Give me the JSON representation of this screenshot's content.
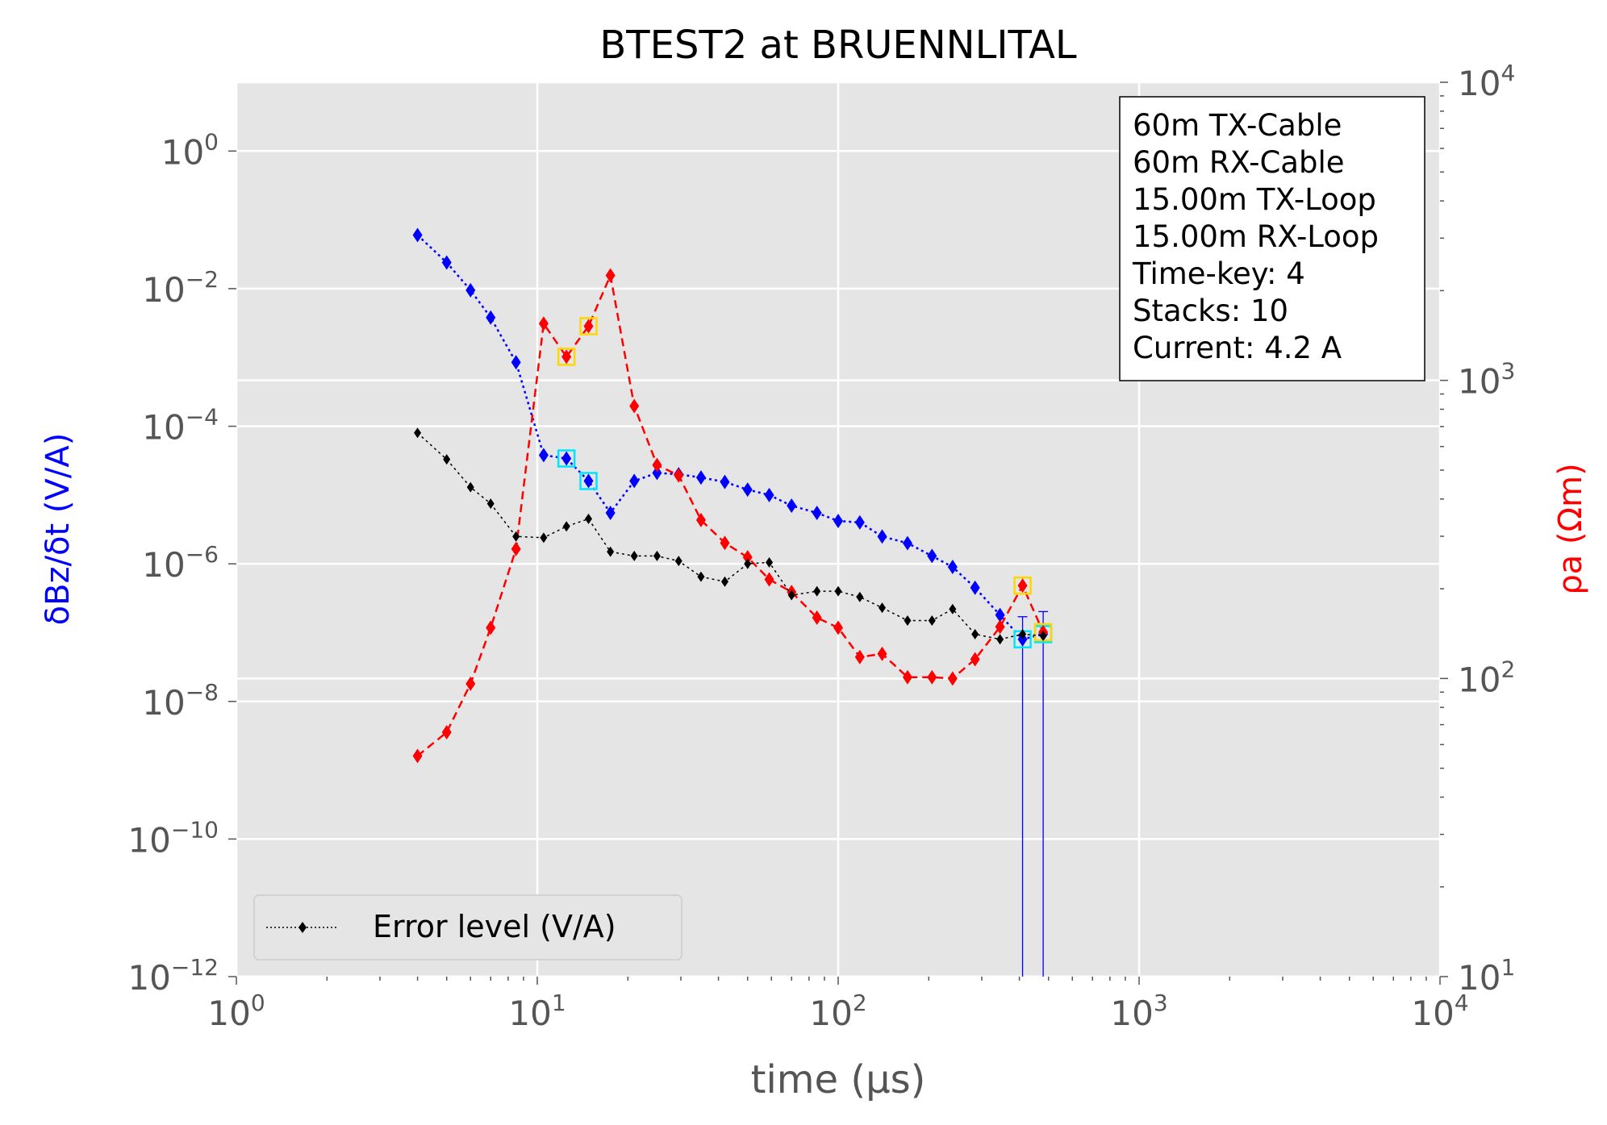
{
  "chart_data": {
    "type": "line",
    "title": "BTEST2 at BRUENNLITAL",
    "xlabel": "time (μs)",
    "ylabel_left": "δBz/δt (V/A)",
    "ylabel_right": "ρa (Ωm)",
    "x_scale": "log",
    "xlim": [
      1,
      10000
    ],
    "y_left_scale": "log",
    "y_left_lim": [
      1e-12,
      10
    ],
    "y_right_scale": "log",
    "y_right_lim": [
      10,
      10000
    ],
    "grid": true,
    "x_tick_labels": [
      {
        "base": "10",
        "exp": "0",
        "value": 1
      },
      {
        "base": "10",
        "exp": "1",
        "value": 10
      },
      {
        "base": "10",
        "exp": "2",
        "value": 100
      },
      {
        "base": "10",
        "exp": "3",
        "value": 1000
      },
      {
        "base": "10",
        "exp": "4",
        "value": 10000
      }
    ],
    "y_left_tick_labels": [
      {
        "base": "10",
        "exp": "0",
        "value": 1
      },
      {
        "base": "10",
        "exp": "−2",
        "value": 0.01
      },
      {
        "base": "10",
        "exp": "−4",
        "value": 0.0001
      },
      {
        "base": "10",
        "exp": "−6",
        "value": 1e-06
      },
      {
        "base": "10",
        "exp": "−8",
        "value": 1e-08
      },
      {
        "base": "10",
        "exp": "−10",
        "value": 1e-10
      },
      {
        "base": "10",
        "exp": "−12",
        "value": 1e-12
      }
    ],
    "y_right_tick_labels": [
      {
        "base": "10",
        "exp": "4",
        "value": 10000
      },
      {
        "base": "10",
        "exp": "3",
        "value": 1000
      },
      {
        "base": "10",
        "exp": "2",
        "value": 100
      },
      {
        "base": "10",
        "exp": "1",
        "value": 10
      }
    ],
    "legend": {
      "position": "lower-left",
      "entries": [
        "Error level (V/A)"
      ]
    },
    "info_box": {
      "position": "upper-right",
      "lines": [
        "60m TX-Cable",
        "60m RX-Cable",
        "15.00m TX-Loop",
        "15.00m RX-Loop",
        "Time-key: 4",
        "Stacks: 10",
        "Current: 4.2 A"
      ]
    },
    "series": [
      {
        "axis": "left",
        "color": "#0000ff",
        "line_style": "dotted",
        "marker": "diamond",
        "x": [
          4.0,
          5.0,
          6.0,
          7.0,
          8.5,
          10.5,
          12.5,
          14.8,
          17.5,
          21.0,
          25.0,
          29.5,
          35.0,
          42.0,
          50.0,
          59.0,
          70.0,
          85.0,
          100.0,
          118.0,
          140.0,
          170.0,
          205.0,
          240.0,
          285.0,
          345.0,
          410.0,
          480.0
        ],
        "y": [
          0.06,
          0.024,
          0.0095,
          0.0038,
          0.00085,
          3.8e-05,
          3.4e-05,
          1.6e-05,
          5.5e-06,
          1.6e-05,
          2.1e-05,
          2e-05,
          1.8e-05,
          1.55e-05,
          1.2e-05,
          1e-05,
          7e-06,
          5.5e-06,
          4.2e-06,
          4e-06,
          2.5e-06,
          2e-06,
          1.3e-06,
          9e-07,
          4.5e-07,
          1.8e-07,
          8e-08,
          9.5e-08
        ],
        "error_bar_to_bottom_x": [
          410.0,
          480.0
        ],
        "highlighted_x": [
          12.5,
          14.8,
          410.0,
          480.0
        ],
        "highlight_color": "#00e5ff"
      },
      {
        "axis": "right",
        "color": "#ff0000",
        "line_style": "dashed",
        "marker": "diamond",
        "x": [
          4.0,
          5.0,
          6.0,
          7.0,
          8.5,
          10.5,
          12.5,
          14.8,
          17.5,
          21.0,
          25.0,
          29.5,
          35.0,
          42.0,
          50.0,
          59.0,
          70.0,
          85.0,
          100.0,
          118.0,
          140.0,
          170.0,
          205.0,
          240.0,
          285.0,
          345.0,
          410.0,
          480.0
        ],
        "y": [
          55,
          66,
          96,
          148,
          272,
          1550,
          1200,
          1520,
          2250,
          820,
          520,
          480,
          340,
          285,
          255,
          215,
          195,
          160,
          148,
          118,
          121,
          101,
          101,
          100,
          116,
          149,
          205,
          143
        ],
        "highlighted_x": [
          12.5,
          14.8,
          410.0,
          480.0
        ],
        "highlight_color": "#ffd700"
      },
      {
        "name": "Error level (V/A)",
        "axis": "left",
        "color": "#000000",
        "line_style": "dotted",
        "marker": "diamond-small",
        "x": [
          4.0,
          5.0,
          6.0,
          7.0,
          8.5,
          10.5,
          12.5,
          14.8,
          17.5,
          21.0,
          25.0,
          29.5,
          35.0,
          42.0,
          50.0,
          59.0,
          70.0,
          85.0,
          100.0,
          118.0,
          140.0,
          170.0,
          205.0,
          240.0,
          285.0,
          345.0,
          410.0,
          480.0
        ],
        "y": [
          8e-05,
          3.3e-05,
          1.3e-05,
          7.5e-06,
          2.5e-06,
          2.4e-06,
          3.5e-06,
          4.5e-06,
          1.5e-06,
          1.3e-06,
          1.3e-06,
          1.1e-06,
          6.5e-07,
          5.5e-07,
          1e-06,
          1.05e-06,
          3.5e-07,
          4e-07,
          4e-07,
          3.3e-07,
          2.3e-07,
          1.5e-07,
          1.5e-07,
          2.2e-07,
          9.5e-08,
          8e-08,
          9.5e-08,
          9e-08
        ]
      }
    ]
  }
}
